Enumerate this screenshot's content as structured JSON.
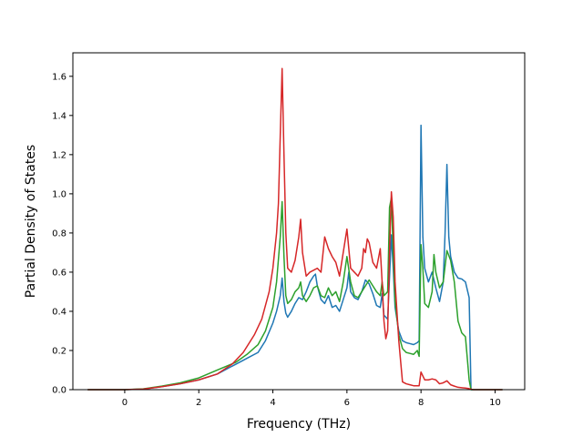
{
  "chart_data": {
    "type": "line",
    "title": "",
    "xlabel": "Frequency (THz)",
    "ylabel": "Partial Density of States",
    "xlim": [
      -1.4,
      10.8
    ],
    "ylim": [
      0.0,
      1.72
    ],
    "xticks": [
      0,
      2,
      4,
      6,
      8,
      10
    ],
    "xtick_labels": [
      "0",
      "2",
      "4",
      "6",
      "8",
      "10"
    ],
    "yticks": [
      0.0,
      0.2,
      0.4,
      0.6,
      0.8,
      1.0,
      1.2,
      1.4,
      1.6
    ],
    "ytick_labels": [
      "0.0",
      "0.2",
      "0.4",
      "0.6",
      "0.8",
      "1.0",
      "1.2",
      "1.4",
      "1.6"
    ],
    "grid": false,
    "legend": "none",
    "series": [
      {
        "color": "#1f77b4",
        "points": [
          [
            -1.0,
            0.0
          ],
          [
            0.0,
            0.0
          ],
          [
            0.5,
            0.003
          ],
          [
            1.0,
            0.015
          ],
          [
            1.5,
            0.03
          ],
          [
            2.0,
            0.05
          ],
          [
            2.5,
            0.08
          ],
          [
            3.0,
            0.13
          ],
          [
            3.3,
            0.16
          ],
          [
            3.6,
            0.19
          ],
          [
            3.8,
            0.25
          ],
          [
            4.0,
            0.34
          ],
          [
            4.1,
            0.4
          ],
          [
            4.2,
            0.48
          ],
          [
            4.25,
            0.57
          ],
          [
            4.3,
            0.45
          ],
          [
            4.35,
            0.39
          ],
          [
            4.4,
            0.37
          ],
          [
            4.5,
            0.4
          ],
          [
            4.6,
            0.44
          ],
          [
            4.7,
            0.47
          ],
          [
            4.8,
            0.46
          ],
          [
            4.9,
            0.5
          ],
          [
            5.0,
            0.55
          ],
          [
            5.1,
            0.58
          ],
          [
            5.15,
            0.59
          ],
          [
            5.2,
            0.53
          ],
          [
            5.3,
            0.46
          ],
          [
            5.4,
            0.44
          ],
          [
            5.5,
            0.48
          ],
          [
            5.6,
            0.42
          ],
          [
            5.7,
            0.43
          ],
          [
            5.8,
            0.4
          ],
          [
            5.9,
            0.46
          ],
          [
            6.0,
            0.52
          ],
          [
            6.05,
            0.6
          ],
          [
            6.1,
            0.5
          ],
          [
            6.2,
            0.47
          ],
          [
            6.3,
            0.46
          ],
          [
            6.4,
            0.5
          ],
          [
            6.5,
            0.56
          ],
          [
            6.6,
            0.54
          ],
          [
            6.7,
            0.49
          ],
          [
            6.8,
            0.43
          ],
          [
            6.9,
            0.42
          ],
          [
            6.95,
            0.49
          ],
          [
            7.0,
            0.38
          ],
          [
            7.1,
            0.36
          ],
          [
            7.2,
            0.79
          ],
          [
            7.25,
            0.62
          ],
          [
            7.3,
            0.42
          ],
          [
            7.4,
            0.3
          ],
          [
            7.5,
            0.25
          ],
          [
            7.6,
            0.24
          ],
          [
            7.7,
            0.235
          ],
          [
            7.8,
            0.23
          ],
          [
            7.9,
            0.24
          ],
          [
            7.95,
            0.25
          ],
          [
            8.0,
            1.35
          ],
          [
            8.05,
            0.78
          ],
          [
            8.1,
            0.62
          ],
          [
            8.2,
            0.55
          ],
          [
            8.3,
            0.6
          ],
          [
            8.4,
            0.52
          ],
          [
            8.5,
            0.45
          ],
          [
            8.6,
            0.55
          ],
          [
            8.65,
            0.8
          ],
          [
            8.7,
            1.15
          ],
          [
            8.75,
            0.78
          ],
          [
            8.8,
            0.68
          ],
          [
            8.9,
            0.6
          ],
          [
            9.0,
            0.57
          ],
          [
            9.1,
            0.565
          ],
          [
            9.2,
            0.55
          ],
          [
            9.3,
            0.47
          ],
          [
            9.35,
            0.0
          ],
          [
            10.2,
            0.0
          ]
        ]
      },
      {
        "color": "#2ca02c",
        "points": [
          [
            -1.0,
            0.0
          ],
          [
            0.0,
            0.0
          ],
          [
            0.5,
            0.004
          ],
          [
            1.0,
            0.018
          ],
          [
            1.5,
            0.035
          ],
          [
            2.0,
            0.06
          ],
          [
            2.5,
            0.1
          ],
          [
            3.0,
            0.14
          ],
          [
            3.3,
            0.18
          ],
          [
            3.6,
            0.23
          ],
          [
            3.8,
            0.3
          ],
          [
            4.0,
            0.42
          ],
          [
            4.1,
            0.55
          ],
          [
            4.2,
            0.78
          ],
          [
            4.25,
            0.96
          ],
          [
            4.3,
            0.68
          ],
          [
            4.35,
            0.48
          ],
          [
            4.4,
            0.44
          ],
          [
            4.5,
            0.46
          ],
          [
            4.6,
            0.5
          ],
          [
            4.7,
            0.52
          ],
          [
            4.75,
            0.55
          ],
          [
            4.8,
            0.48
          ],
          [
            4.9,
            0.45
          ],
          [
            5.0,
            0.48
          ],
          [
            5.1,
            0.52
          ],
          [
            5.2,
            0.53
          ],
          [
            5.3,
            0.48
          ],
          [
            5.4,
            0.47
          ],
          [
            5.5,
            0.52
          ],
          [
            5.6,
            0.48
          ],
          [
            5.7,
            0.5
          ],
          [
            5.8,
            0.45
          ],
          [
            5.9,
            0.55
          ],
          [
            6.0,
            0.68
          ],
          [
            6.1,
            0.55
          ],
          [
            6.2,
            0.48
          ],
          [
            6.3,
            0.47
          ],
          [
            6.4,
            0.5
          ],
          [
            6.5,
            0.53
          ],
          [
            6.6,
            0.56
          ],
          [
            6.7,
            0.53
          ],
          [
            6.8,
            0.5
          ],
          [
            6.9,
            0.48
          ],
          [
            6.95,
            0.55
          ],
          [
            7.0,
            0.48
          ],
          [
            7.1,
            0.5
          ],
          [
            7.15,
            0.93
          ],
          [
            7.2,
            0.98
          ],
          [
            7.25,
            0.7
          ],
          [
            7.3,
            0.45
          ],
          [
            7.4,
            0.28
          ],
          [
            7.5,
            0.21
          ],
          [
            7.6,
            0.19
          ],
          [
            7.7,
            0.185
          ],
          [
            7.8,
            0.18
          ],
          [
            7.9,
            0.2
          ],
          [
            7.95,
            0.17
          ],
          [
            8.0,
            0.74
          ],
          [
            8.05,
            0.62
          ],
          [
            8.1,
            0.44
          ],
          [
            8.2,
            0.42
          ],
          [
            8.3,
            0.5
          ],
          [
            8.35,
            0.69
          ],
          [
            8.4,
            0.6
          ],
          [
            8.5,
            0.52
          ],
          [
            8.6,
            0.55
          ],
          [
            8.7,
            0.71
          ],
          [
            8.8,
            0.66
          ],
          [
            8.9,
            0.55
          ],
          [
            9.0,
            0.35
          ],
          [
            9.1,
            0.29
          ],
          [
            9.2,
            0.27
          ],
          [
            9.3,
            0.05
          ],
          [
            9.35,
            0.0
          ],
          [
            10.2,
            0.0
          ]
        ]
      },
      {
        "color": "#d62728",
        "points": [
          [
            -1.0,
            0.0
          ],
          [
            0.0,
            0.0
          ],
          [
            0.5,
            0.003
          ],
          [
            1.0,
            0.015
          ],
          [
            1.5,
            0.03
          ],
          [
            2.0,
            0.05
          ],
          [
            2.5,
            0.08
          ],
          [
            2.9,
            0.13
          ],
          [
            3.2,
            0.19
          ],
          [
            3.5,
            0.28
          ],
          [
            3.7,
            0.36
          ],
          [
            3.9,
            0.5
          ],
          [
            4.0,
            0.62
          ],
          [
            4.1,
            0.8
          ],
          [
            4.15,
            0.95
          ],
          [
            4.2,
            1.3
          ],
          [
            4.25,
            1.64
          ],
          [
            4.3,
            1.2
          ],
          [
            4.35,
            0.8
          ],
          [
            4.4,
            0.62
          ],
          [
            4.5,
            0.6
          ],
          [
            4.6,
            0.66
          ],
          [
            4.7,
            0.78
          ],
          [
            4.75,
            0.87
          ],
          [
            4.8,
            0.7
          ],
          [
            4.9,
            0.58
          ],
          [
            5.0,
            0.6
          ],
          [
            5.1,
            0.61
          ],
          [
            5.2,
            0.62
          ],
          [
            5.3,
            0.6
          ],
          [
            5.4,
            0.78
          ],
          [
            5.5,
            0.72
          ],
          [
            5.6,
            0.68
          ],
          [
            5.7,
            0.65
          ],
          [
            5.8,
            0.58
          ],
          [
            5.9,
            0.7
          ],
          [
            6.0,
            0.82
          ],
          [
            6.05,
            0.72
          ],
          [
            6.1,
            0.62
          ],
          [
            6.2,
            0.6
          ],
          [
            6.3,
            0.58
          ],
          [
            6.4,
            0.62
          ],
          [
            6.45,
            0.72
          ],
          [
            6.5,
            0.7
          ],
          [
            6.55,
            0.77
          ],
          [
            6.6,
            0.75
          ],
          [
            6.7,
            0.65
          ],
          [
            6.8,
            0.62
          ],
          [
            6.9,
            0.72
          ],
          [
            6.95,
            0.55
          ],
          [
            7.0,
            0.35
          ],
          [
            7.05,
            0.26
          ],
          [
            7.1,
            0.3
          ],
          [
            7.15,
            0.7
          ],
          [
            7.2,
            1.01
          ],
          [
            7.25,
            0.88
          ],
          [
            7.3,
            0.55
          ],
          [
            7.4,
            0.25
          ],
          [
            7.5,
            0.04
          ],
          [
            7.6,
            0.03
          ],
          [
            7.7,
            0.025
          ],
          [
            7.8,
            0.02
          ],
          [
            7.9,
            0.02
          ],
          [
            7.95,
            0.02
          ],
          [
            8.0,
            0.09
          ],
          [
            8.1,
            0.05
          ],
          [
            8.2,
            0.05
          ],
          [
            8.3,
            0.055
          ],
          [
            8.4,
            0.05
          ],
          [
            8.5,
            0.03
          ],
          [
            8.6,
            0.035
          ],
          [
            8.7,
            0.045
          ],
          [
            8.8,
            0.025
          ],
          [
            8.9,
            0.018
          ],
          [
            9.0,
            0.012
          ],
          [
            9.1,
            0.01
          ],
          [
            9.2,
            0.008
          ],
          [
            9.3,
            0.005
          ],
          [
            9.4,
            0.0
          ],
          [
            10.2,
            0.0
          ]
        ]
      }
    ]
  }
}
